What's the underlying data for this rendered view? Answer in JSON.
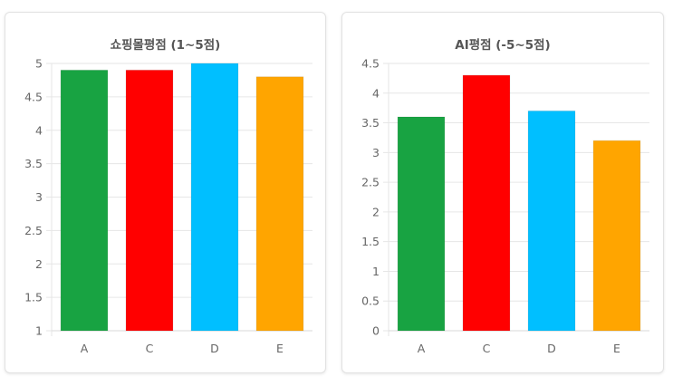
{
  "chart_data": [
    {
      "type": "bar",
      "title": "쇼핑몰평점 (1~5점)",
      "categories": [
        "A",
        "C",
        "D",
        "E"
      ],
      "values": [
        4.9,
        4.9,
        5.0,
        4.8
      ],
      "colors": [
        "#18a342",
        "#ff0000",
        "#00bfff",
        "#ffa500"
      ],
      "ylim": [
        1,
        5
      ],
      "yticks": [
        "1",
        "1.5",
        "2",
        "2.5",
        "3",
        "3.5",
        "4",
        "4.5",
        "5"
      ],
      "grid": true,
      "legend": "none"
    },
    {
      "type": "bar",
      "title": "AI평점 (-5~5점)",
      "categories": [
        "A",
        "C",
        "D",
        "E"
      ],
      "values": [
        3.6,
        4.3,
        3.7,
        3.2
      ],
      "colors": [
        "#18a342",
        "#ff0000",
        "#00bfff",
        "#ffa500"
      ],
      "ylim": [
        0,
        4.5
      ],
      "yticks": [
        "0",
        "0.5",
        "1",
        "1.5",
        "2",
        "2.5",
        "3",
        "3.5",
        "4",
        "4.5"
      ],
      "grid": true,
      "legend": "none"
    }
  ]
}
